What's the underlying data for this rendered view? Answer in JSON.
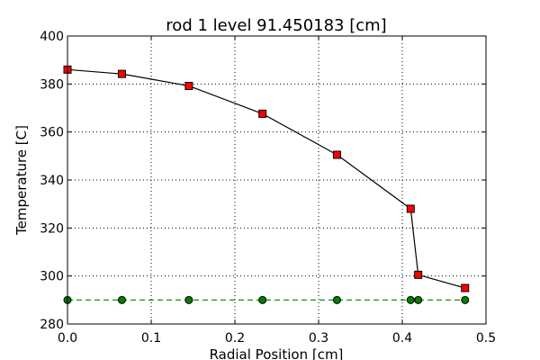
{
  "chart_data": {
    "type": "line",
    "title": "rod 1 level 91.450183 [cm]",
    "xlabel": "Radial Position [cm]",
    "ylabel": "Temperature [C]",
    "xlim": [
      0.0,
      0.5
    ],
    "ylim": [
      280,
      400
    ],
    "x_ticks": [
      "0.0",
      "0.1",
      "0.2",
      "0.3",
      "0.4",
      "0.5"
    ],
    "y_ticks": [
      "280",
      "300",
      "320",
      "340",
      "360",
      "380",
      "400"
    ],
    "grid": true,
    "series": [
      {
        "color": "#ff0000",
        "line_color": "#000000",
        "marker": "square",
        "x": [
          0.0,
          0.065,
          0.145,
          0.233,
          0.322,
          0.41,
          0.419,
          0.475
        ],
        "y": [
          386,
          384.2,
          379.2,
          367.6,
          350.5,
          328,
          300.5,
          295
        ]
      },
      {
        "color": "#007f00",
        "line_color": "#008000",
        "marker": "circle",
        "linestyle": "dashed",
        "x": [
          0.0,
          0.065,
          0.145,
          0.233,
          0.322,
          0.41,
          0.419,
          0.475
        ],
        "y": [
          290,
          290,
          290,
          290,
          290,
          290,
          290,
          290
        ]
      }
    ]
  }
}
